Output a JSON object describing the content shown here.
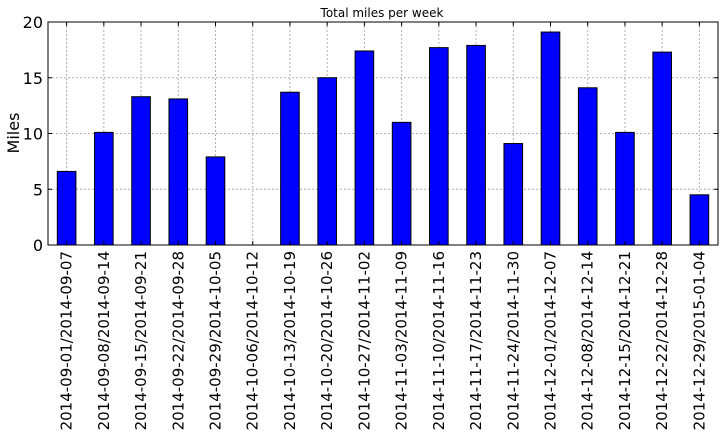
{
  "chart_data": {
    "type": "bar",
    "title": "Total miles per week",
    "xlabel": "",
    "ylabel": "Miles",
    "ylim": [
      0,
      20
    ],
    "yticks": [
      0,
      5,
      10,
      15,
      20
    ],
    "grid": true,
    "categories": [
      "2014-09-01/2014-09-07",
      "2014-09-08/2014-09-14",
      "2014-09-15/2014-09-21",
      "2014-09-22/2014-09-28",
      "2014-09-29/2014-10-05",
      "2014-10-06/2014-10-12",
      "2014-10-13/2014-10-19",
      "2014-10-20/2014-10-26",
      "2014-10-27/2014-11-02",
      "2014-11-03/2014-11-09",
      "2014-11-10/2014-11-16",
      "2014-11-17/2014-11-23",
      "2014-11-24/2014-11-30",
      "2014-12-01/2014-12-07",
      "2014-12-08/2014-12-14",
      "2014-12-15/2014-12-21",
      "2014-12-22/2014-12-28",
      "2014-12-29/2015-01-04"
    ],
    "values": [
      6.6,
      10.1,
      13.3,
      13.1,
      7.9,
      0,
      13.7,
      15.0,
      17.4,
      11.0,
      17.7,
      17.9,
      9.1,
      19.1,
      14.1,
      10.1,
      17.3,
      4.5
    ],
    "bar_color": "#0000ff",
    "edge_color": "#000000",
    "grid_color": "#b0b0b0"
  }
}
